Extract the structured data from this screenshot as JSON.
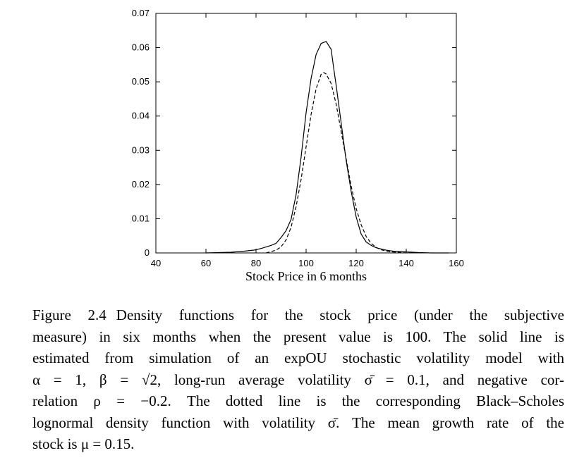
{
  "chart_data": {
    "type": "line",
    "xlabel": "Stock Price in 6 months",
    "ylabel": "",
    "xlim": [
      40,
      160
    ],
    "ylim": [
      0,
      0.07
    ],
    "x_ticks": [
      "40",
      "60",
      "80",
      "100",
      "120",
      "140",
      "160"
    ],
    "y_ticks": [
      "0",
      "0.01",
      "0.02",
      "0.03",
      "0.04",
      "0.05",
      "0.06",
      "0.07"
    ],
    "grid": false,
    "legend": "none",
    "series": [
      {
        "style": "solid",
        "color": "#000000",
        "points": [
          [
            60,
            0.0
          ],
          [
            70,
            0.0002
          ],
          [
            75,
            0.0005
          ],
          [
            80,
            0.0009
          ],
          [
            83,
            0.0015
          ],
          [
            86,
            0.0022
          ],
          [
            88,
            0.0028
          ],
          [
            90,
            0.0045
          ],
          [
            92,
            0.0065
          ],
          [
            94,
            0.0098
          ],
          [
            96,
            0.017
          ],
          [
            98,
            0.028
          ],
          [
            100,
            0.041
          ],
          [
            102,
            0.051
          ],
          [
            104,
            0.058
          ],
          [
            106,
            0.0612
          ],
          [
            108,
            0.0618
          ],
          [
            110,
            0.0595
          ],
          [
            111,
            0.054
          ],
          [
            112,
            0.049
          ],
          [
            114,
            0.038
          ],
          [
            116,
            0.027
          ],
          [
            118,
            0.018
          ],
          [
            120,
            0.0105
          ],
          [
            122,
            0.0055
          ],
          [
            124,
            0.0032
          ],
          [
            126,
            0.0022
          ],
          [
            128,
            0.0015
          ],
          [
            132,
            0.0008
          ],
          [
            135,
            0.0005
          ],
          [
            140,
            0.0003
          ],
          [
            145,
            0.0001
          ],
          [
            150,
            0.0
          ],
          [
            157,
            0.0
          ]
        ]
      },
      {
        "style": "dashed",
        "color": "#000000",
        "points": [
          [
            84,
            0.0
          ],
          [
            88,
            0.0008
          ],
          [
            90,
            0.0018
          ],
          [
            92,
            0.0038
          ],
          [
            94,
            0.0075
          ],
          [
            96,
            0.0135
          ],
          [
            98,
            0.0215
          ],
          [
            100,
            0.031
          ],
          [
            102,
            0.0405
          ],
          [
            104,
            0.048
          ],
          [
            106,
            0.0522
          ],
          [
            107,
            0.0527
          ],
          [
            108,
            0.0523
          ],
          [
            110,
            0.0495
          ],
          [
            112,
            0.0435
          ],
          [
            114,
            0.0355
          ],
          [
            116,
            0.0275
          ],
          [
            118,
            0.0195
          ],
          [
            120,
            0.013
          ],
          [
            122,
            0.0082
          ],
          [
            124,
            0.0048
          ],
          [
            126,
            0.0028
          ],
          [
            128,
            0.0016
          ],
          [
            130,
            0.0009
          ],
          [
            133,
            0.0004
          ],
          [
            136,
            0.0002
          ],
          [
            140,
            0.0
          ]
        ]
      }
    ]
  },
  "caption": {
    "figure_number": "Figure 2.4",
    "lines": [
      "Density functions for the stock price (under the subjective",
      "measure) in six months when the present value is 100. The solid line is",
      "estimated from simulation of an expOU stochastic volatility model with",
      "α = 1, β = √2, long-run average volatility σ̄ = 0.1, and negative cor-",
      "relation ρ = −0.2. The dotted line is the corresponding Black–Scholes",
      "lognormal density function with volatility σ̄. The mean growth rate of the",
      "stock is μ = 0.15."
    ]
  }
}
